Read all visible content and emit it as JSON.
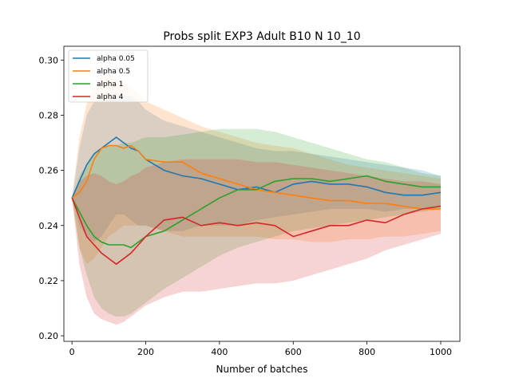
{
  "chart_data": {
    "type": "line",
    "title": "Probs split EXP3 Adult B10 N 10_10",
    "xlabel": "Number of batches",
    "ylabel": "",
    "xlim": [
      -22,
      1052
    ],
    "ylim": [
      0.198,
      0.305
    ],
    "x_ticks": [
      0,
      200,
      400,
      600,
      800,
      1000
    ],
    "x_tick_labels": [
      "0",
      "200",
      "400",
      "600",
      "800",
      "1000"
    ],
    "y_ticks": [
      0.2,
      0.22,
      0.24,
      0.26,
      0.28,
      0.3
    ],
    "y_tick_labels": [
      "0.20",
      "0.22",
      "0.24",
      "0.26",
      "0.28",
      "0.30"
    ],
    "grid": false,
    "legend_position": "top-left",
    "series": [
      {
        "name": "alpha 0.05",
        "color": "#1f77b4",
        "x": [
          0,
          20,
          40,
          60,
          80,
          100,
          120,
          140,
          160,
          180,
          200,
          250,
          300,
          350,
          400,
          450,
          500,
          550,
          600,
          650,
          700,
          750,
          800,
          850,
          900,
          950,
          1000
        ],
        "mean": [
          0.25,
          0.256,
          0.262,
          0.266,
          0.268,
          0.27,
          0.272,
          0.27,
          0.268,
          0.267,
          0.264,
          0.26,
          0.258,
          0.257,
          0.255,
          0.253,
          0.254,
          0.252,
          0.255,
          0.256,
          0.255,
          0.255,
          0.254,
          0.252,
          0.251,
          0.251,
          0.252
        ],
        "lower": [
          0.25,
          0.24,
          0.236,
          0.234,
          0.236,
          0.24,
          0.244,
          0.244,
          0.242,
          0.24,
          0.24,
          0.238,
          0.238,
          0.24,
          0.24,
          0.24,
          0.242,
          0.243,
          0.244,
          0.245,
          0.246,
          0.246,
          0.246,
          0.245,
          0.246,
          0.246,
          0.247
        ],
        "upper": [
          0.25,
          0.268,
          0.28,
          0.285,
          0.285,
          0.286,
          0.287,
          0.287,
          0.287,
          0.285,
          0.282,
          0.278,
          0.276,
          0.274,
          0.272,
          0.27,
          0.268,
          0.267,
          0.267,
          0.266,
          0.265,
          0.264,
          0.263,
          0.262,
          0.261,
          0.26,
          0.258
        ]
      },
      {
        "name": "alpha 0.5",
        "color": "#ff7f0e",
        "x": [
          0,
          20,
          40,
          60,
          80,
          100,
          120,
          140,
          160,
          180,
          200,
          250,
          300,
          350,
          400,
          450,
          500,
          550,
          600,
          650,
          700,
          750,
          800,
          850,
          900,
          950,
          1000
        ],
        "mean": [
          0.25,
          0.252,
          0.256,
          0.264,
          0.268,
          0.269,
          0.269,
          0.268,
          0.269,
          0.267,
          0.264,
          0.263,
          0.263,
          0.259,
          0.257,
          0.255,
          0.253,
          0.252,
          0.251,
          0.25,
          0.249,
          0.249,
          0.248,
          0.248,
          0.247,
          0.246,
          0.246
        ],
        "lower": [
          0.25,
          0.232,
          0.226,
          0.228,
          0.232,
          0.236,
          0.238,
          0.24,
          0.24,
          0.24,
          0.24,
          0.238,
          0.236,
          0.236,
          0.236,
          0.236,
          0.236,
          0.235,
          0.235,
          0.234,
          0.234,
          0.235,
          0.235,
          0.236,
          0.236,
          0.237,
          0.238
        ],
        "upper": [
          0.25,
          0.272,
          0.284,
          0.29,
          0.294,
          0.294,
          0.293,
          0.292,
          0.29,
          0.288,
          0.285,
          0.282,
          0.279,
          0.276,
          0.274,
          0.272,
          0.27,
          0.269,
          0.268,
          0.266,
          0.264,
          0.262,
          0.261,
          0.26,
          0.259,
          0.258,
          0.257
        ]
      },
      {
        "name": "alpha 1",
        "color": "#2ca02c",
        "x": [
          0,
          20,
          40,
          60,
          80,
          100,
          120,
          140,
          160,
          180,
          200,
          250,
          300,
          350,
          400,
          450,
          500,
          550,
          600,
          650,
          700,
          750,
          800,
          850,
          900,
          950,
          1000
        ],
        "mean": [
          0.25,
          0.245,
          0.24,
          0.236,
          0.234,
          0.233,
          0.233,
          0.233,
          0.232,
          0.234,
          0.236,
          0.238,
          0.242,
          0.246,
          0.25,
          0.253,
          0.253,
          0.256,
          0.257,
          0.257,
          0.256,
          0.257,
          0.258,
          0.256,
          0.255,
          0.254,
          0.254
        ],
        "lower": [
          0.25,
          0.232,
          0.222,
          0.214,
          0.21,
          0.208,
          0.207,
          0.207,
          0.208,
          0.21,
          0.212,
          0.217,
          0.221,
          0.225,
          0.229,
          0.232,
          0.234,
          0.236,
          0.238,
          0.239,
          0.24,
          0.241,
          0.242,
          0.243,
          0.244,
          0.245,
          0.246
        ],
        "upper": [
          0.25,
          0.258,
          0.262,
          0.266,
          0.268,
          0.269,
          0.269,
          0.27,
          0.27,
          0.271,
          0.272,
          0.272,
          0.273,
          0.274,
          0.275,
          0.275,
          0.275,
          0.274,
          0.272,
          0.27,
          0.268,
          0.266,
          0.264,
          0.263,
          0.261,
          0.259,
          0.258
        ]
      },
      {
        "name": "alpha 4",
        "color": "#d62728",
        "x": [
          0,
          20,
          40,
          60,
          80,
          100,
          120,
          140,
          160,
          180,
          200,
          250,
          300,
          350,
          400,
          450,
          500,
          550,
          600,
          650,
          700,
          750,
          800,
          850,
          900,
          950,
          1000
        ],
        "mean": [
          0.25,
          0.243,
          0.236,
          0.233,
          0.23,
          0.228,
          0.226,
          0.228,
          0.23,
          0.233,
          0.236,
          0.242,
          0.243,
          0.24,
          0.241,
          0.24,
          0.241,
          0.24,
          0.236,
          0.238,
          0.24,
          0.24,
          0.242,
          0.241,
          0.244,
          0.246,
          0.247
        ],
        "lower": [
          0.25,
          0.226,
          0.214,
          0.208,
          0.206,
          0.205,
          0.204,
          0.205,
          0.207,
          0.209,
          0.211,
          0.214,
          0.216,
          0.216,
          0.217,
          0.218,
          0.219,
          0.219,
          0.22,
          0.222,
          0.224,
          0.226,
          0.228,
          0.231,
          0.233,
          0.235,
          0.237
        ],
        "upper": [
          0.25,
          0.256,
          0.258,
          0.259,
          0.258,
          0.256,
          0.255,
          0.256,
          0.258,
          0.259,
          0.261,
          0.263,
          0.264,
          0.264,
          0.264,
          0.264,
          0.263,
          0.263,
          0.262,
          0.261,
          0.26,
          0.259,
          0.258,
          0.257,
          0.256,
          0.256,
          0.255
        ]
      }
    ]
  }
}
